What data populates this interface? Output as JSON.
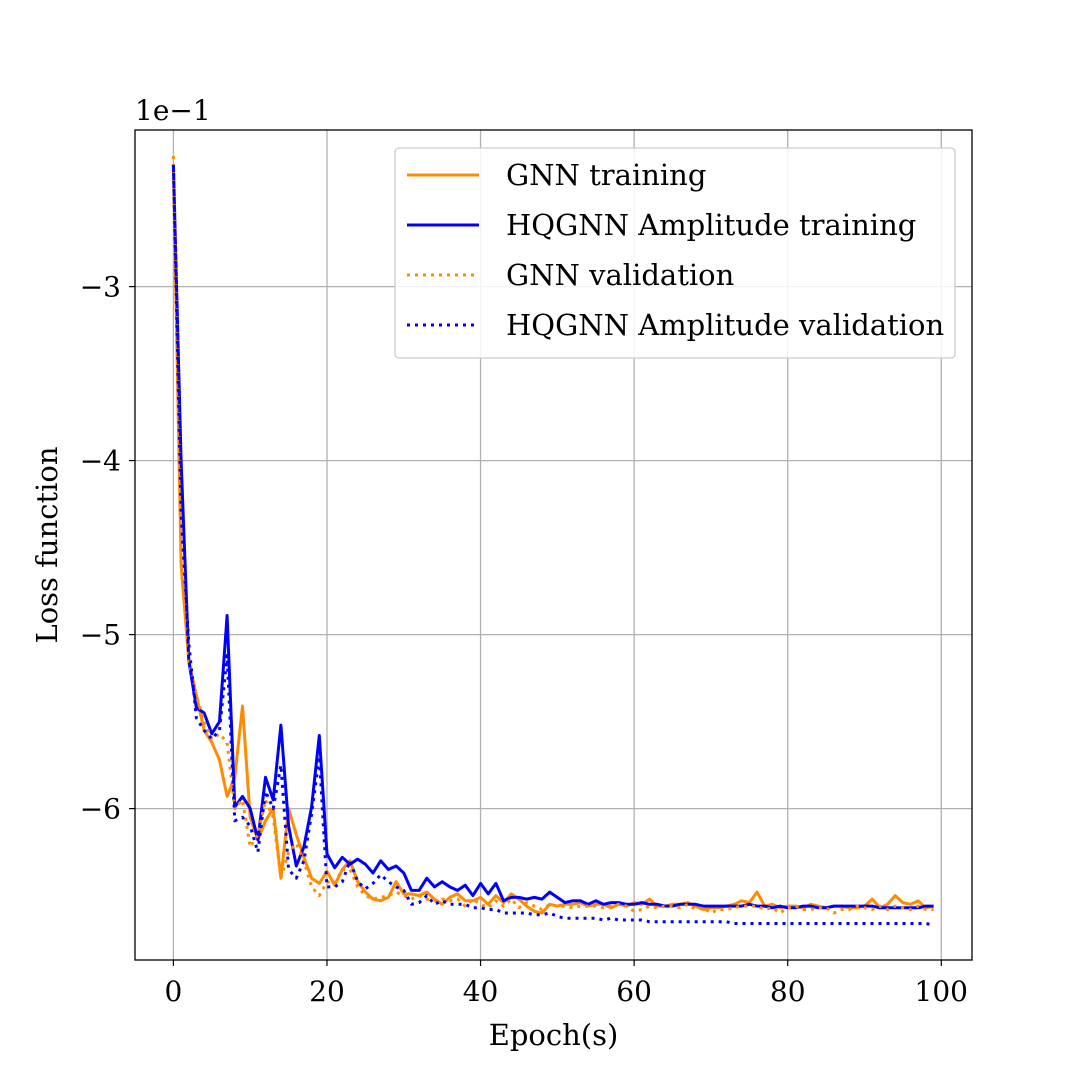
{
  "chart_data": {
    "type": "line",
    "xlabel": "Epoch(s)",
    "ylabel": "Loss function",
    "y_offset_label": "1e−1",
    "xlim": [
      -5,
      104
    ],
    "ylim": [
      -6.87,
      -2.1
    ],
    "xticks": [
      0,
      20,
      40,
      60,
      80,
      100
    ],
    "xtick_labels": [
      "0",
      "20",
      "40",
      "60",
      "80",
      "100"
    ],
    "yticks": [
      -3,
      -4,
      -5,
      -6
    ],
    "ytick_labels": [
      "−3",
      "−4",
      "−5",
      "−6"
    ],
    "grid": true,
    "legend_position": "upper right",
    "x": [
      0,
      1,
      2,
      3,
      4,
      5,
      6,
      7,
      8,
      9,
      10,
      11,
      12,
      13,
      14,
      15,
      16,
      17,
      18,
      19,
      20,
      21,
      22,
      23,
      24,
      25,
      26,
      27,
      28,
      29,
      30,
      31,
      32,
      33,
      34,
      35,
      36,
      37,
      38,
      39,
      40,
      41,
      42,
      43,
      44,
      45,
      46,
      47,
      48,
      49,
      50,
      51,
      52,
      53,
      54,
      55,
      56,
      57,
      58,
      59,
      60,
      61,
      62,
      63,
      64,
      65,
      66,
      67,
      68,
      69,
      70,
      71,
      72,
      73,
      74,
      75,
      76,
      77,
      78,
      79,
      80,
      81,
      82,
      83,
      84,
      85,
      86,
      87,
      88,
      89,
      90,
      91,
      92,
      93,
      94,
      95,
      96,
      97,
      98,
      99
    ],
    "series": [
      {
        "name": "GNN training",
        "color": "#ff8c00",
        "style": "solid",
        "values": [
          -2.3,
          -4.6,
          -5.15,
          -5.35,
          -5.55,
          -5.62,
          -5.72,
          -5.93,
          -5.82,
          -5.41,
          -6.05,
          -6.18,
          -6.07,
          -6.0,
          -6.4,
          -6.0,
          -6.15,
          -6.28,
          -6.4,
          -6.43,
          -6.36,
          -6.44,
          -6.35,
          -6.3,
          -6.42,
          -6.48,
          -6.52,
          -6.53,
          -6.51,
          -6.42,
          -6.49,
          -6.49,
          -6.5,
          -6.48,
          -6.52,
          -6.55,
          -6.51,
          -6.49,
          -6.53,
          -6.53,
          -6.51,
          -6.55,
          -6.5,
          -6.54,
          -6.49,
          -6.52,
          -6.56,
          -6.59,
          -6.6,
          -6.55,
          -6.56,
          -6.55,
          -6.55,
          -6.54,
          -6.56,
          -6.55,
          -6.55,
          -6.57,
          -6.55,
          -6.56,
          -6.54,
          -6.55,
          -6.52,
          -6.56,
          -6.56,
          -6.55,
          -6.55,
          -6.54,
          -6.56,
          -6.58,
          -6.57,
          -6.57,
          -6.56,
          -6.55,
          -6.53,
          -6.54,
          -6.48,
          -6.56,
          -6.55,
          -6.57,
          -6.56,
          -6.56,
          -6.57,
          -6.55,
          -6.56,
          -6.57,
          -6.56,
          -6.56,
          -6.57,
          -6.57,
          -6.56,
          -6.52,
          -6.57,
          -6.55,
          -6.5,
          -6.54,
          -6.55,
          -6.53,
          -6.57,
          -6.56
        ]
      },
      {
        "name": "HQGNN Amplitude training",
        "color": "#0000ff",
        "style": "solid",
        "values": [
          -2.3,
          -4.0,
          -5.15,
          -5.42,
          -5.45,
          -5.57,
          -5.5,
          -4.89,
          -5.99,
          -5.93,
          -6.0,
          -6.18,
          -5.82,
          -5.95,
          -5.52,
          -6.1,
          -6.33,
          -6.22,
          -5.99,
          -5.58,
          -6.26,
          -6.34,
          -6.28,
          -6.32,
          -6.29,
          -6.32,
          -6.37,
          -6.3,
          -6.35,
          -6.33,
          -6.37,
          -6.47,
          -6.47,
          -6.4,
          -6.45,
          -6.42,
          -6.45,
          -6.47,
          -6.44,
          -6.5,
          -6.43,
          -6.49,
          -6.43,
          -6.53,
          -6.51,
          -6.51,
          -6.52,
          -6.51,
          -6.52,
          -6.48,
          -6.51,
          -6.54,
          -6.53,
          -6.53,
          -6.55,
          -6.53,
          -6.55,
          -6.54,
          -6.54,
          -6.55,
          -6.55,
          -6.54,
          -6.55,
          -6.55,
          -6.56,
          -6.56,
          -6.55,
          -6.55,
          -6.55,
          -6.56,
          -6.56,
          -6.56,
          -6.56,
          -6.56,
          -6.56,
          -6.55,
          -6.56,
          -6.56,
          -6.57,
          -6.56,
          -6.57,
          -6.57,
          -6.56,
          -6.56,
          -6.57,
          -6.57,
          -6.56,
          -6.56,
          -6.56,
          -6.56,
          -6.56,
          -6.56,
          -6.57,
          -6.57,
          -6.57,
          -6.57,
          -6.57,
          -6.57,
          -6.56,
          -6.56
        ]
      },
      {
        "name": "GNN validation",
        "color": "#ff8c00",
        "style": "dotted",
        "values": [
          -2.25,
          -4.45,
          -5.15,
          -5.35,
          -5.5,
          -5.6,
          -5.57,
          -5.62,
          -6.0,
          -5.95,
          -6.22,
          -6.15,
          -5.95,
          -6.05,
          -6.4,
          -6.25,
          -6.2,
          -6.3,
          -6.45,
          -6.5,
          -6.42,
          -6.43,
          -6.35,
          -6.35,
          -6.45,
          -6.5,
          -6.52,
          -6.51,
          -6.5,
          -6.48,
          -6.5,
          -6.52,
          -6.5,
          -6.52,
          -6.53,
          -6.52,
          -6.53,
          -6.52,
          -6.56,
          -6.52,
          -6.55,
          -6.57,
          -6.53,
          -6.56,
          -6.52,
          -6.57,
          -6.54,
          -6.56,
          -6.58,
          -6.55,
          -6.56,
          -6.56,
          -6.57,
          -6.56,
          -6.56,
          -6.56,
          -6.57,
          -6.56,
          -6.55,
          -6.56,
          -6.59,
          -6.58,
          -6.56,
          -6.57,
          -6.56,
          -6.56,
          -6.57,
          -6.55,
          -6.58,
          -6.57,
          -6.6,
          -6.58,
          -6.58,
          -6.57,
          -6.56,
          -6.56,
          -6.56,
          -6.58,
          -6.57,
          -6.6,
          -6.57,
          -6.56,
          -6.58,
          -6.58,
          -6.57,
          -6.57,
          -6.6,
          -6.58,
          -6.58,
          -6.56,
          -6.57,
          -6.58,
          -6.56,
          -6.58,
          -6.56,
          -6.57,
          -6.58,
          -6.56,
          -6.58,
          -6.58
        ]
      },
      {
        "name": "HQGNN Amplitude validation",
        "color": "#0000ff",
        "style": "dotted",
        "values": [
          -2.3,
          -4.3,
          -5.05,
          -5.48,
          -5.55,
          -5.6,
          -5.55,
          -5.12,
          -6.07,
          -6.05,
          -6.1,
          -6.25,
          -5.9,
          -6.0,
          -5.75,
          -6.35,
          -6.4,
          -6.3,
          -6.03,
          -5.7,
          -6.45,
          -6.45,
          -6.42,
          -6.3,
          -6.42,
          -6.46,
          -6.43,
          -6.38,
          -6.42,
          -6.45,
          -6.47,
          -6.55,
          -6.54,
          -6.5,
          -6.55,
          -6.53,
          -6.55,
          -6.55,
          -6.55,
          -6.57,
          -6.57,
          -6.58,
          -6.58,
          -6.6,
          -6.6,
          -6.6,
          -6.6,
          -6.61,
          -6.61,
          -6.6,
          -6.62,
          -6.63,
          -6.63,
          -6.63,
          -6.63,
          -6.63,
          -6.64,
          -6.63,
          -6.64,
          -6.64,
          -6.64,
          -6.64,
          -6.65,
          -6.65,
          -6.65,
          -6.65,
          -6.65,
          -6.65,
          -6.65,
          -6.65,
          -6.65,
          -6.65,
          -6.65,
          -6.66,
          -6.66,
          -6.66,
          -6.66,
          -6.66,
          -6.66,
          -6.66,
          -6.66,
          -6.66,
          -6.66,
          -6.66,
          -6.66,
          -6.66,
          -6.66,
          -6.66,
          -6.66,
          -6.66,
          -6.66,
          -6.66,
          -6.66,
          -6.66,
          -6.66,
          -6.66,
          -6.66,
          -6.66,
          -6.66,
          -6.67
        ]
      }
    ]
  }
}
